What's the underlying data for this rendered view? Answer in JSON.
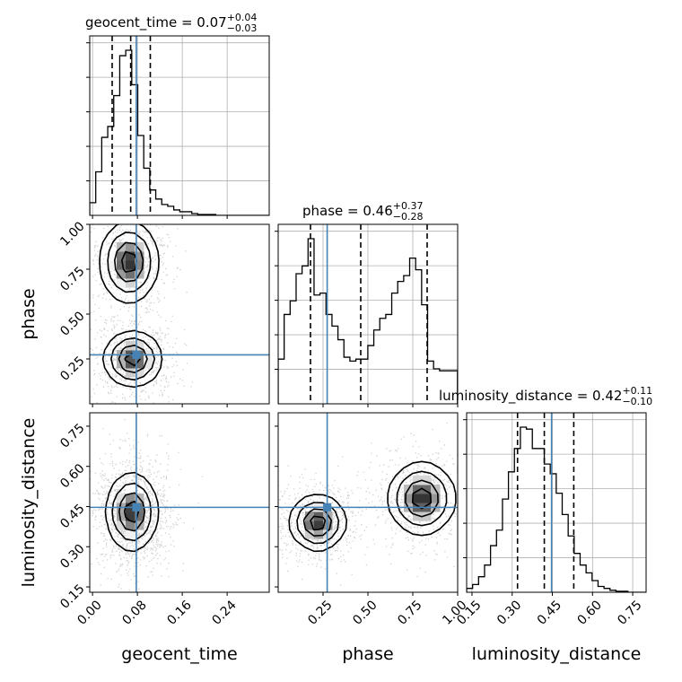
{
  "chart_data": {
    "type": "corner",
    "parameters": [
      "geocent_time",
      "phase",
      "luminosity_distance"
    ],
    "axis_labels": [
      "geocent_time",
      "phase",
      "luminosity_distance"
    ],
    "ranges": {
      "geocent_time": [
        -0.005,
        0.315
      ],
      "phase": [
        0.0,
        1.0
      ],
      "luminosity_distance": [
        0.13,
        0.8
      ]
    },
    "ticks": {
      "geocent_time": {
        "values": [
          0.0,
          0.08,
          0.16,
          0.24
        ],
        "labels": [
          "0.00",
          "0.08",
          "0.16",
          "0.24"
        ]
      },
      "phase": {
        "values": [
          0.25,
          0.5,
          0.75,
          1.0
        ],
        "labels": [
          "0.25",
          "0.50",
          "0.75",
          "1.00"
        ]
      },
      "luminosity_distance": {
        "values": [
          0.15,
          0.3,
          0.45,
          0.6,
          0.75
        ],
        "labels": [
          "0.15",
          "0.30",
          "0.45",
          "0.60",
          "0.75"
        ]
      }
    },
    "truths": {
      "geocent_time": 0.078,
      "phase": 0.273,
      "luminosity_distance": 0.447
    },
    "titles": [
      {
        "param": "geocent_time",
        "prefix": "geocent_time = 0.07",
        "plus": "+0.04",
        "minus": "−0.03"
      },
      {
        "param": "phase",
        "prefix": "phase = 0.46",
        "plus": "+0.37",
        "minus": "−0.28"
      },
      {
        "param": "luminosity_distance",
        "prefix": "luminosity_distance = 0.42",
        "plus": "+0.11",
        "minus": "−0.10"
      }
    ],
    "quantiles": {
      "geocent_time": [
        0.035,
        0.068,
        0.103
      ],
      "phase": [
        0.18,
        0.46,
        0.83
      ],
      "luminosity_distance": [
        0.32,
        0.42,
        0.53
      ]
    },
    "histograms": {
      "geocent_time": {
        "edges_start": -0.005,
        "bin_width": 0.0107,
        "counts": [
          0.07,
          0.24,
          0.43,
          0.49,
          0.66,
          0.88,
          0.91,
          0.72,
          0.44,
          0.26,
          0.14,
          0.09,
          0.06,
          0.05,
          0.03,
          0.02,
          0.02,
          0.01,
          0.005,
          0.005,
          0.005,
          0,
          0,
          0,
          0,
          0,
          0,
          0,
          0,
          0
        ]
      },
      "phase": {
        "edges_start": 0.0,
        "bin_width": 0.0333,
        "counts": [
          0.23,
          0.46,
          0.53,
          0.67,
          0.71,
          0.85,
          0.56,
          0.57,
          0.46,
          0.4,
          0.33,
          0.24,
          0.22,
          0.23,
          0.23,
          0.3,
          0.38,
          0.44,
          0.46,
          0.57,
          0.63,
          0.66,
          0.75,
          0.69,
          0.51,
          0.22,
          0.18,
          0.17,
          0.17,
          0.17
        ]
      },
      "luminosity_distance": {
        "edges_start": 0.13,
        "bin_width": 0.0223,
        "counts": [
          0.02,
          0.04,
          0.08,
          0.14,
          0.24,
          0.32,
          0.48,
          0.62,
          0.74,
          0.85,
          0.84,
          0.74,
          0.74,
          0.66,
          0.61,
          0.51,
          0.4,
          0.29,
          0.2,
          0.14,
          0.1,
          0.06,
          0.03,
          0.02,
          0.01,
          0.005,
          0.005,
          0,
          0,
          0
        ]
      }
    },
    "density_2d": [
      {
        "x": "geocent_time",
        "y": "phase",
        "modes": [
          {
            "cx": 0.065,
            "cy": 0.79,
            "sx": 0.025,
            "sy": 0.11,
            "w": 1.0
          },
          {
            "cx": 0.072,
            "cy": 0.25,
            "sx": 0.025,
            "sy": 0.075,
            "w": 1.0
          }
        ]
      },
      {
        "x": "geocent_time",
        "y": "luminosity_distance",
        "modes": [
          {
            "cx": 0.07,
            "cy": 0.43,
            "sx": 0.022,
            "sy": 0.07,
            "w": 1.0
          }
        ]
      },
      {
        "x": "phase",
        "y": "luminosity_distance",
        "modes": [
          {
            "cx": 0.22,
            "cy": 0.39,
            "sx": 0.075,
            "sy": 0.05,
            "w": 1.0
          },
          {
            "cx": 0.8,
            "cy": 0.48,
            "sx": 0.09,
            "sy": 0.065,
            "w": 1.0
          }
        ]
      }
    ],
    "colors": {
      "truth": "#4682b4",
      "hist": "#000000",
      "grid": "#b0b0b0",
      "scatter": "#000000"
    }
  }
}
